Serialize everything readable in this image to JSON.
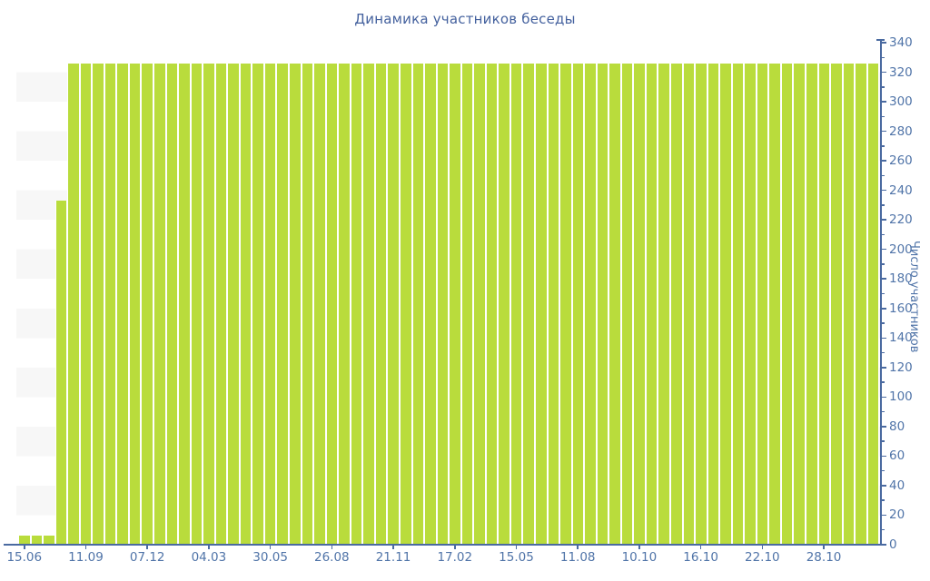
{
  "chart_data": {
    "type": "bar",
    "title": "Динамика участников беседы",
    "xlabel": "",
    "ylabel": "Число участников",
    "ylim": [
      0,
      340
    ],
    "y_tick_step": 20,
    "y_minor_tick_step": 10,
    "legend_position": "none",
    "grid": "alternating horizontal bands (white / light gray) every 20 units",
    "x_tick_labels": [
      "15.06",
      "11.09",
      "07.12",
      "04.03",
      "30.05",
      "26.08",
      "21.11",
      "17.02",
      "15.05",
      "11.08",
      "10.10",
      "16.10",
      "22.10",
      "28.10"
    ],
    "x_label_every_n_bars": 5,
    "values": [
      6,
      6,
      6,
      233,
      326,
      326,
      326,
      326,
      326,
      326,
      326,
      326,
      326,
      326,
      326,
      326,
      326,
      326,
      326,
      326,
      326,
      326,
      326,
      326,
      326,
      326,
      326,
      326,
      326,
      326,
      326,
      326,
      326,
      326,
      326,
      326,
      326,
      326,
      326,
      326,
      326,
      326,
      326,
      326,
      326,
      326,
      326,
      326,
      326,
      326,
      326,
      326,
      326,
      326,
      326,
      326,
      326,
      326,
      326,
      326,
      326,
      326,
      326,
      326,
      326,
      326,
      326,
      326,
      326,
      326
    ]
  },
  "colors": {
    "bar": "#b9dc3c",
    "band": "#f7f7f7",
    "background": "#ffffff",
    "axis": "#4a6aa0",
    "tick_label": "#5074a8",
    "title": "#44619e"
  }
}
